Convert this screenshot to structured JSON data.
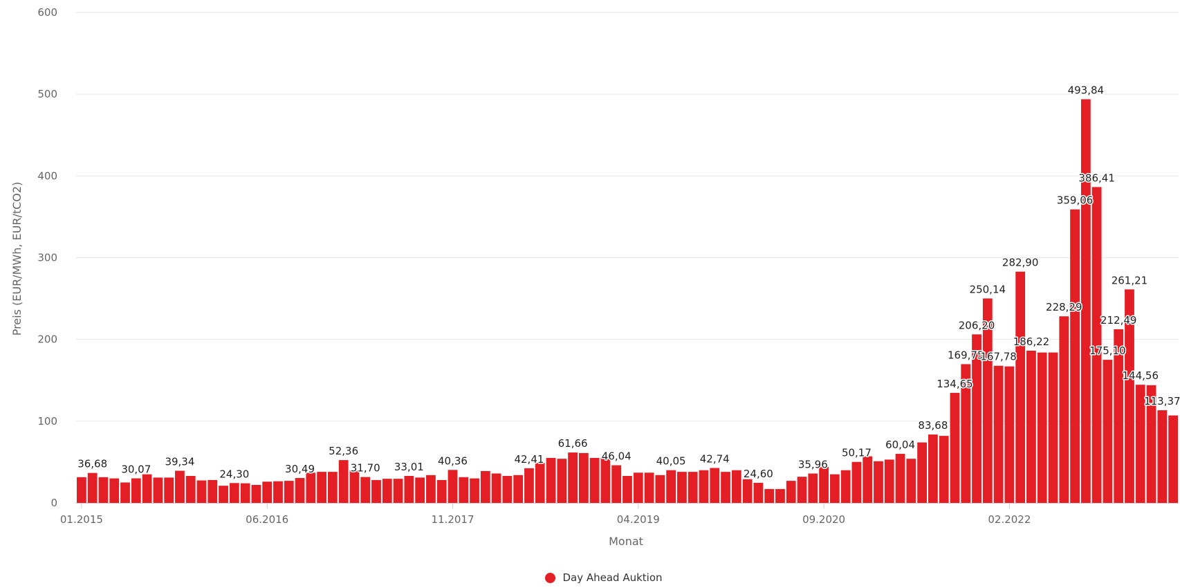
{
  "chart_data": {
    "type": "bar",
    "title": "",
    "xlabel": "Monat",
    "ylabel": "Preis (EUR/MWh, EUR/tCO2)",
    "ylim": [
      0,
      600
    ],
    "yticks": [
      0,
      100,
      200,
      300,
      400,
      500,
      600
    ],
    "grid": true,
    "legend_placement": "bottom-center",
    "start_month": "01.2015",
    "xtick_labels": [
      {
        "index": 0,
        "label": "01.2015"
      },
      {
        "index": 17,
        "label": "06.2016"
      },
      {
        "index": 34,
        "label": "11.2017"
      },
      {
        "index": 51,
        "label": "04.2019"
      },
      {
        "index": 68,
        "label": "09.2020"
      },
      {
        "index": 85,
        "label": "02.2022"
      }
    ],
    "series": [
      {
        "name": "Day Ahead Auktion",
        "color": "#e31e24",
        "values": [
          31.5,
          36.68,
          31.5,
          30.0,
          25.0,
          30.07,
          35.0,
          31.0,
          31.0,
          39.34,
          33.0,
          27.5,
          28.0,
          21.0,
          24.3,
          24.0,
          22.0,
          26.0,
          26.5,
          27.0,
          30.49,
          37.0,
          38.0,
          38.0,
          52.36,
          40.0,
          31.7,
          28.0,
          29.5,
          29.5,
          33.01,
          31.0,
          34.0,
          28.0,
          40.36,
          31.5,
          30.0,
          39.0,
          36.0,
          33.0,
          34.0,
          42.41,
          49.0,
          55.0,
          54.0,
          61.66,
          61.0,
          55.0,
          55.0,
          46.04,
          33.0,
          37.0,
          37.0,
          34.0,
          40.05,
          38.0,
          38.0,
          40.0,
          42.74,
          38.0,
          40.0,
          29.0,
          24.6,
          17.0,
          17.0,
          27.0,
          32.0,
          35.96,
          44.0,
          35.0,
          40.0,
          50.17,
          57.0,
          51.0,
          53.0,
          60.04,
          54.0,
          74.0,
          83.68,
          82.0,
          134.65,
          169.75,
          206.2,
          250.14,
          167.78,
          167.0,
          282.9,
          186.22,
          184.0,
          184.0,
          228.29,
          359.06,
          493.84,
          386.41,
          175.1,
          212.49,
          261.21,
          144.56,
          144.0,
          113.37,
          107.0
        ],
        "data_labels": [
          {
            "index": 1,
            "text": "36,68"
          },
          {
            "index": 5,
            "text": "30,07"
          },
          {
            "index": 9,
            "text": "39,34"
          },
          {
            "index": 14,
            "text": "24,30"
          },
          {
            "index": 20,
            "text": "30,49"
          },
          {
            "index": 24,
            "text": "52,36"
          },
          {
            "index": 26,
            "text": "31,70"
          },
          {
            "index": 30,
            "text": "33,01"
          },
          {
            "index": 34,
            "text": "40,36"
          },
          {
            "index": 41,
            "text": "42,41"
          },
          {
            "index": 45,
            "text": "61,66"
          },
          {
            "index": 49,
            "text": "46,04"
          },
          {
            "index": 54,
            "text": "40,05"
          },
          {
            "index": 58,
            "text": "42,74"
          },
          {
            "index": 62,
            "text": "24,60"
          },
          {
            "index": 67,
            "text": "35,96"
          },
          {
            "index": 71,
            "text": "50,17"
          },
          {
            "index": 75,
            "text": "60,04"
          },
          {
            "index": 78,
            "text": "83,68"
          },
          {
            "index": 80,
            "text": "134,65"
          },
          {
            "index": 81,
            "text": "169,75"
          },
          {
            "index": 82,
            "text": "206,20"
          },
          {
            "index": 83,
            "text": "250,14"
          },
          {
            "index": 84,
            "text": "167,78"
          },
          {
            "index": 86,
            "text": "282,90"
          },
          {
            "index": 87,
            "text": "186,22"
          },
          {
            "index": 90,
            "text": "228,29"
          },
          {
            "index": 91,
            "text": "359,06"
          },
          {
            "index": 92,
            "text": "493,84"
          },
          {
            "index": 93,
            "text": "386,41"
          },
          {
            "index": 94,
            "text": "175,10"
          },
          {
            "index": 95,
            "text": "212,49"
          },
          {
            "index": 96,
            "text": "261,21"
          },
          {
            "index": 97,
            "text": "144,56"
          },
          {
            "index": 99,
            "text": "113,37"
          }
        ]
      }
    ]
  }
}
